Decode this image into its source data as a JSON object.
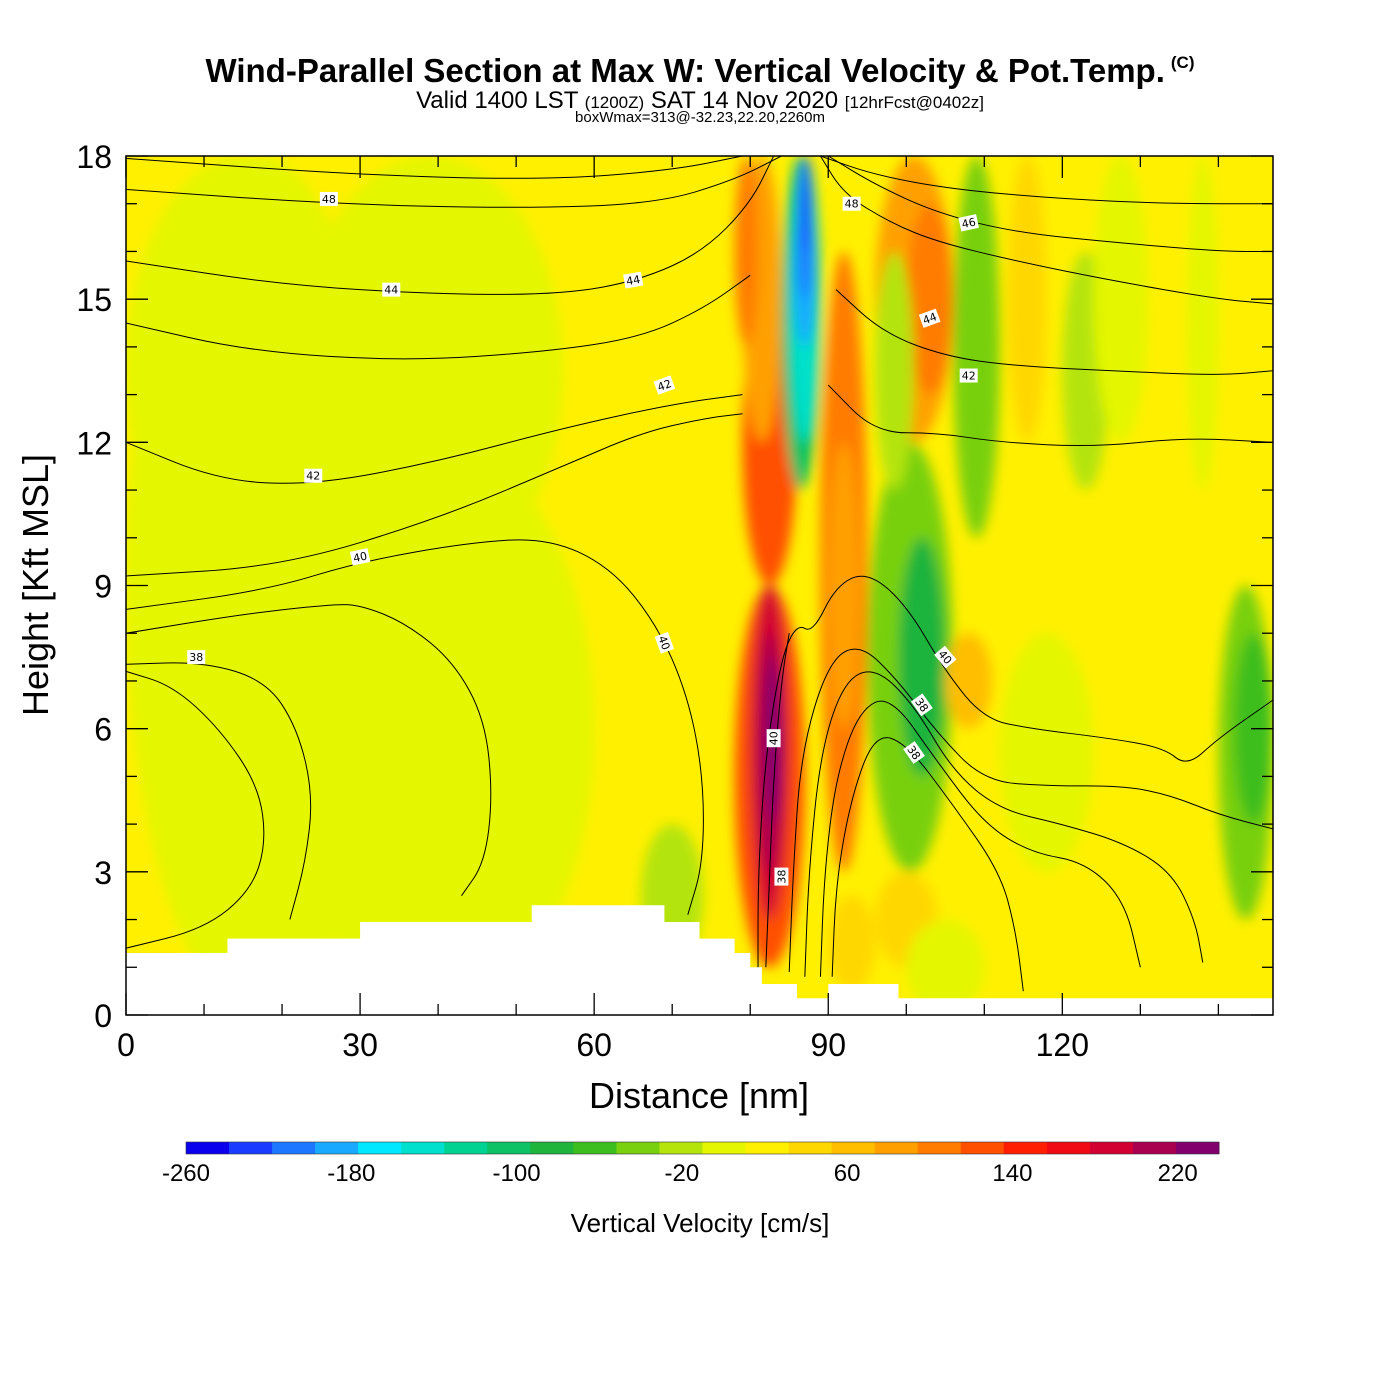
{
  "header": {
    "title": "Wind-Parallel Section at Max W: Vertical Velocity & Pot.Temp.",
    "copyright": "(C)",
    "valid_prefix": "Valid 1400 LST",
    "valid_utc": "(1200Z)",
    "valid_date": "SAT 14 Nov 2020",
    "forecast": "[12hrFcst@0402z]",
    "boxwmax": "boxWmax=313@-32.23,22.20,2260m"
  },
  "chart_data": {
    "type": "heatmap",
    "xlabel": "Distance [nm]",
    "ylabel": "Height [Kft MSL]",
    "xlim": [
      0,
      147
    ],
    "ylim": [
      0,
      18
    ],
    "x_ticks": [
      "0",
      "30",
      "60",
      "90",
      "120"
    ],
    "x_tick_values": [
      0,
      30,
      60,
      90,
      120
    ],
    "y_ticks": [
      "0",
      "3",
      "6",
      "9",
      "12",
      "15",
      "18"
    ],
    "y_tick_values": [
      0,
      3,
      6,
      9,
      12,
      15,
      18
    ],
    "colorbar": {
      "title": "Vertical Velocity [cm/s]",
      "min": -260,
      "max": 240,
      "step": 20,
      "labels": [
        "-260",
        "-180",
        "-100",
        "-20",
        "60",
        "140",
        "220"
      ],
      "label_values": [
        -260,
        -180,
        -100,
        -20,
        60,
        140,
        220
      ],
      "colors": [
        "#0a00ee",
        "#1a3cff",
        "#1e78ff",
        "#19aaff",
        "#00e8ff",
        "#00e0cc",
        "#00d291",
        "#0cc264",
        "#1fb43c",
        "#3cbe1e",
        "#78d00e",
        "#b4e40a",
        "#e4f600",
        "#fff000",
        "#ffd700",
        "#ffbe00",
        "#ffa000",
        "#ff7c00",
        "#ff5000",
        "#ff1e00",
        "#f00a14",
        "#d20032",
        "#aa0050",
        "#82006e"
      ]
    },
    "max_w": {
      "value_cm_s": 313,
      "lat": -32.23,
      "lon": 22.2,
      "height_m": 2260
    },
    "terrain": [
      {
        "x": 0,
        "h": 1.3
      },
      {
        "x": 13,
        "h": 1.6
      },
      {
        "x": 30,
        "h": 1.95
      },
      {
        "x": 52,
        "h": 2.3
      },
      {
        "x": 69,
        "h": 1.95
      },
      {
        "x": 73.5,
        "h": 1.6
      },
      {
        "x": 78,
        "h": 1.3
      },
      {
        "x": 80,
        "h": 1.0
      },
      {
        "x": 81.5,
        "h": 0.65
      },
      {
        "x": 86,
        "h": 0.35
      },
      {
        "x": 90,
        "h": 0.65
      },
      {
        "x": 99,
        "h": 0.35
      },
      {
        "x": 147,
        "h": 0.35
      }
    ],
    "w_features": [
      {
        "name": "updraft-core",
        "x": 83,
        "y": 6.5,
        "w": 200
      },
      {
        "name": "downdraft-core",
        "x": 87.5,
        "y": 15.5,
        "w": -240
      },
      {
        "name": "secondary-updraft",
        "x": 92,
        "y": 9,
        "w": 80
      },
      {
        "name": "lee-downdraft",
        "x": 101,
        "y": 8,
        "w": -90
      }
    ],
    "theta_contours": [
      {
        "label": "38",
        "points": [
          [
            0,
            1.4
          ],
          [
            10,
            1.8
          ],
          [
            16,
            2.6
          ],
          [
            18,
            3.6
          ],
          [
            17,
            4.8
          ],
          [
            12,
            6.0
          ],
          [
            6,
            6.9
          ],
          [
            0,
            7.2
          ]
        ]
      },
      {
        "label": "38",
        "points": [
          [
            0,
            7.35
          ],
          [
            10,
            7.4
          ],
          [
            18,
            7.0
          ],
          [
            22,
            6.0
          ],
          [
            24,
            4.6
          ],
          [
            23,
            3.2
          ],
          [
            21,
            2.0
          ]
        ]
      },
      {
        "label": "40",
        "points": [
          [
            0,
            8.0
          ],
          [
            15,
            8.4
          ],
          [
            26,
            8.6
          ],
          [
            30,
            8.6
          ],
          [
            36,
            8.2
          ],
          [
            42,
            7.4
          ],
          [
            46,
            6.2
          ],
          [
            47,
            4.6
          ],
          [
            46,
            3.2
          ],
          [
            43,
            2.5
          ]
        ]
      },
      {
        "label": "40",
        "points": [
          [
            0,
            8.5
          ],
          [
            18,
            8.9
          ],
          [
            30,
            9.5
          ],
          [
            44,
            9.9
          ],
          [
            54,
            10.0
          ],
          [
            62,
            9.4
          ],
          [
            68,
            8.2
          ],
          [
            72,
            6.7
          ],
          [
            74,
            5.0
          ],
          [
            74,
            3.2
          ],
          [
            72,
            2.1
          ]
        ]
      },
      {
        "label": "40",
        "points": [
          [
            0,
            9.2
          ],
          [
            20,
            9.4
          ],
          [
            40,
            10.4
          ],
          [
            56,
            11.5
          ],
          [
            66,
            12.2
          ],
          [
            74,
            12.5
          ],
          [
            79,
            12.6
          ]
        ]
      },
      {
        "label": "42",
        "points": [
          [
            0,
            12.0
          ],
          [
            12,
            11.2
          ],
          [
            24,
            11.1
          ],
          [
            40,
            11.6
          ],
          [
            56,
            12.3
          ],
          [
            70,
            12.8
          ],
          [
            79,
            13.0
          ]
        ]
      },
      {
        "label": "42",
        "points": [
          [
            0,
            14.5
          ],
          [
            16,
            13.9
          ],
          [
            36,
            13.7
          ],
          [
            54,
            13.9
          ],
          [
            66,
            14.2
          ],
          [
            74,
            14.8
          ],
          [
            80,
            15.5
          ]
        ]
      },
      {
        "label": "44",
        "points": [
          [
            0,
            15.8
          ],
          [
            20,
            15.3
          ],
          [
            40,
            15.1
          ],
          [
            56,
            15.1
          ],
          [
            66,
            15.4
          ],
          [
            74,
            16.0
          ],
          [
            80,
            17.0
          ],
          [
            83,
            18.0
          ]
        ]
      },
      {
        "label": "46",
        "points": [
          [
            0,
            17.3
          ],
          [
            26,
            17.0
          ],
          [
            50,
            16.9
          ],
          [
            68,
            17.0
          ],
          [
            78,
            17.5
          ],
          [
            84,
            18.0
          ]
        ]
      },
      {
        "label": "48",
        "points": [
          [
            0,
            17.95
          ],
          [
            30,
            17.6
          ],
          [
            54,
            17.5
          ],
          [
            70,
            17.7
          ],
          [
            79,
            18.0
          ]
        ]
      },
      {
        "label": "38",
        "points": [
          [
            82,
            1.0
          ],
          [
            82.5,
            3.0
          ],
          [
            83,
            5.0
          ],
          [
            84,
            7.0
          ],
          [
            85,
            8.0
          ]
        ]
      },
      {
        "label": "40",
        "points": [
          [
            81,
            0.8
          ],
          [
            81,
            3.0
          ],
          [
            82,
            5.5
          ],
          [
            84,
            7.5
          ],
          [
            86,
            8.2
          ],
          [
            88,
            8.0
          ],
          [
            91,
            9.0
          ],
          [
            95,
            9.3
          ],
          [
            100,
            8.6
          ],
          [
            105,
            7.2
          ],
          [
            110,
            6.2
          ],
          [
            116,
            6.0
          ],
          [
            126,
            5.8
          ],
          [
            133,
            5.6
          ],
          [
            136,
            5.2
          ],
          [
            140,
            5.8
          ],
          [
            147,
            6.6
          ]
        ]
      },
      {
        "label": "38",
        "points": [
          [
            85,
            0.9
          ],
          [
            85.5,
            3.0
          ],
          [
            86.5,
            5.5
          ],
          [
            90,
            7.4
          ],
          [
            94,
            7.8
          ],
          [
            99,
            7.0
          ],
          [
            104,
            5.9
          ],
          [
            110,
            4.9
          ],
          [
            118,
            4.8
          ],
          [
            128,
            4.8
          ],
          [
            134,
            4.6
          ],
          [
            140,
            4.2
          ],
          [
            147,
            3.9
          ]
        ]
      },
      {
        "label": "38",
        "points": [
          [
            87,
            0.8
          ],
          [
            87.5,
            3.0
          ],
          [
            89,
            5.5
          ],
          [
            92,
            7.0
          ],
          [
            96,
            7.3
          ],
          [
            101,
            6.5
          ],
          [
            106,
            5.1
          ],
          [
            112,
            4.3
          ],
          [
            120,
            4.0
          ],
          [
            128,
            3.6
          ],
          [
            134,
            3.0
          ],
          [
            137,
            2.0
          ],
          [
            138,
            1.1
          ]
        ]
      },
      {
        "label": "38",
        "points": [
          [
            89,
            0.8
          ],
          [
            89.5,
            3.0
          ],
          [
            91,
            5.0
          ],
          [
            94,
            6.4
          ],
          [
            98,
            6.7
          ],
          [
            104,
            5.3
          ],
          [
            110,
            4.0
          ],
          [
            116,
            3.4
          ],
          [
            123,
            3.2
          ],
          [
            128,
            2.4
          ],
          [
            130,
            1.0
          ]
        ]
      },
      {
        "label": "38",
        "points": [
          [
            90.5,
            0.8
          ],
          [
            91,
            2.8
          ],
          [
            93,
            4.6
          ],
          [
            96,
            5.9
          ],
          [
            100,
            5.7
          ],
          [
            106,
            4.4
          ],
          [
            112,
            3.0
          ],
          [
            114,
            1.8
          ],
          [
            115,
            0.5
          ]
        ]
      },
      {
        "label": "44",
        "points": [
          [
            89,
            18.0
          ],
          [
            92,
            17.2
          ],
          [
            98,
            16.6
          ],
          [
            104,
            16.2
          ],
          [
            114,
            15.8
          ],
          [
            126,
            15.4
          ],
          [
            140,
            15.0
          ],
          [
            147,
            14.9
          ]
        ]
      },
      {
        "label": "46",
        "points": [
          [
            90,
            18.0
          ],
          [
            96,
            17.4
          ],
          [
            104,
            16.8
          ],
          [
            114,
            16.4
          ],
          [
            126,
            16.2
          ],
          [
            140,
            16.0
          ],
          [
            147,
            16.0
          ]
        ]
      },
      {
        "label": "48",
        "points": [
          [
            89,
            18.0
          ],
          [
            96,
            17.6
          ],
          [
            106,
            17.3
          ],
          [
            120,
            17.1
          ],
          [
            134,
            17.0
          ],
          [
            147,
            17.0
          ]
        ]
      },
      {
        "label": "42",
        "points": [
          [
            90,
            13.2
          ],
          [
            96,
            12.2
          ],
          [
            104,
            12.2
          ],
          [
            112,
            12.0
          ],
          [
            124,
            11.9
          ],
          [
            136,
            12.1
          ],
          [
            147,
            12.0
          ]
        ]
      },
      {
        "label": "42",
        "points": [
          [
            91,
            15.2
          ],
          [
            97,
            14.3
          ],
          [
            105,
            13.8
          ],
          [
            114,
            13.6
          ],
          [
            126,
            13.5
          ],
          [
            140,
            13.4
          ],
          [
            147,
            13.5
          ]
        ]
      }
    ],
    "theta_labels": [
      {
        "text": "48",
        "x": 26,
        "y": 17.1,
        "r": 0
      },
      {
        "text": "44",
        "x": 34,
        "y": 15.2,
        "r": 0
      },
      {
        "text": "44",
        "x": 65,
        "y": 15.4,
        "r": -10
      },
      {
        "text": "42",
        "x": 69,
        "y": 13.2,
        "r": -20
      },
      {
        "text": "42",
        "x": 24,
        "y": 11.3,
        "r": 0
      },
      {
        "text": "40",
        "x": 30,
        "y": 9.6,
        "r": -12
      },
      {
        "text": "38",
        "x": 9,
        "y": 7.5,
        "r": 0
      },
      {
        "text": "40",
        "x": 69,
        "y": 7.8,
        "r": 70
      },
      {
        "text": "40",
        "x": 83,
        "y": 5.8,
        "r": -90
      },
      {
        "text": "38",
        "x": 84,
        "y": 2.9,
        "r": -90
      },
      {
        "text": "48",
        "x": 93,
        "y": 17.0,
        "r": 0
      },
      {
        "text": "46",
        "x": 108,
        "y": 16.6,
        "r": -12
      },
      {
        "text": "44",
        "x": 103,
        "y": 14.6,
        "r": -20
      },
      {
        "text": "42",
        "x": 108,
        "y": 13.4,
        "r": 0
      },
      {
        "text": "40",
        "x": 105,
        "y": 7.5,
        "r": 50
      },
      {
        "text": "38",
        "x": 102,
        "y": 6.5,
        "r": 55
      },
      {
        "text": "38",
        "x": 101,
        "y": 5.5,
        "r": 55
      }
    ]
  }
}
